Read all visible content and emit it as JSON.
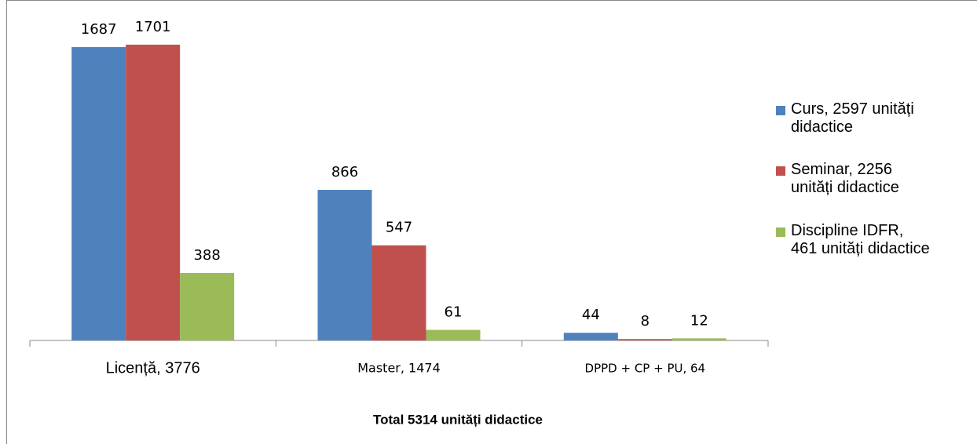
{
  "chart_data": {
    "type": "bar",
    "title": "Total 5314 unități didactice",
    "categories": [
      "Licență, 3776",
      "Master, 1474",
      "DPPD + CP + PU, 64"
    ],
    "series": [
      {
        "name": "Curs, 2597 unități didactice",
        "color": "#4f81bd",
        "values": [
          1687,
          866,
          44
        ]
      },
      {
        "name": "Seminar, 2256 unități didactice",
        "color": "#c0504d",
        "values": [
          1701,
          547,
          8
        ]
      },
      {
        "name": "Discipline IDFR, 461 unități didactice",
        "color": "#9bbb59",
        "values": [
          388,
          61,
          12
        ]
      }
    ],
    "ylim": [
      0,
      1800
    ],
    "legend": "right"
  }
}
